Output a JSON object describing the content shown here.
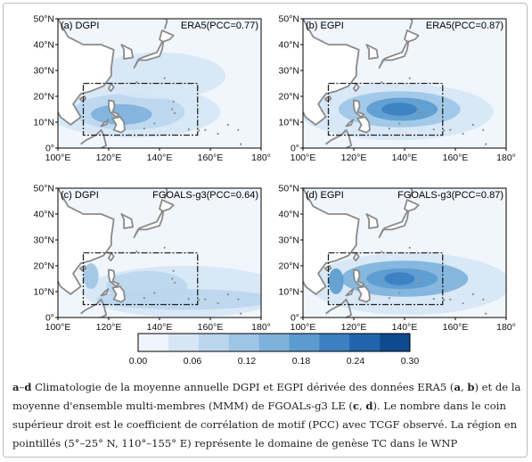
{
  "colors": {
    "land": "#ffffff",
    "coast": "#8a8a8a",
    "ocean_base": "#f1f6fc",
    "box": "#222222",
    "scale": [
      "#eef4fb",
      "#d7e6f5",
      "#bcd6ee",
      "#9ec5e6",
      "#7eb2dc",
      "#5c9bd0",
      "#3b80c0",
      "#2264ab",
      "#0d4a8e"
    ]
  },
  "panels": [
    {
      "label": "(a) DGPI",
      "dataset": "ERA5(PCC=0.77)"
    },
    {
      "label": "(b) EGPI",
      "dataset": "ERA5(PCC=0.87)"
    },
    {
      "label": "(c) DGPI",
      "dataset": "FGOALS-g3(PCC=0.64)"
    },
    {
      "label": "(d) EGPI",
      "dataset": "FGOALS-g3(PCC=0.87)"
    }
  ],
  "chart_data": {
    "type": "heatmap",
    "x_ticks": [
      "100°E",
      "120°E",
      "140°E",
      "160°E",
      "180°"
    ],
    "y_ticks": [
      "0°",
      "10°N",
      "20°N",
      "30°N",
      "40°N",
      "50°N"
    ],
    "xlim": [
      100,
      180
    ],
    "ylim": [
      0,
      50
    ],
    "genesis_region": {
      "lat": [
        5,
        25
      ],
      "lon": [
        110,
        155
      ]
    },
    "colorbar": {
      "ticks": [
        "0.00",
        "0.06",
        "0.12",
        "0.18",
        "0.24",
        "0.30"
      ],
      "levels": [
        0.0,
        0.0375,
        0.075,
        0.1125,
        0.15,
        0.1875,
        0.225,
        0.2625,
        0.3
      ]
    },
    "maps": [
      {
        "name": "(a) DGPI ERA5",
        "blobs": [
          {
            "lon": 130,
            "lat": 14,
            "rx": 34,
            "ry": 10,
            "v": 0.06
          },
          {
            "lon": 128,
            "lat": 14,
            "rx": 22,
            "ry": 7,
            "v": 0.11
          },
          {
            "lon": 125,
            "lat": 13,
            "rx": 12,
            "ry": 4,
            "v": 0.15
          },
          {
            "lon": 140,
            "lat": 28,
            "rx": 26,
            "ry": 9,
            "v": 0.04
          }
        ]
      },
      {
        "name": "(b) EGPI ERA5",
        "blobs": [
          {
            "lon": 137,
            "lat": 14,
            "rx": 38,
            "ry": 11,
            "v": 0.07
          },
          {
            "lon": 138,
            "lat": 15,
            "rx": 24,
            "ry": 7,
            "v": 0.14
          },
          {
            "lon": 139,
            "lat": 15,
            "rx": 14,
            "ry": 4.5,
            "v": 0.2
          },
          {
            "lon": 138,
            "lat": 15,
            "rx": 7,
            "ry": 2.5,
            "v": 0.25
          }
        ]
      },
      {
        "name": "(c) DGPI FGOALS-g3",
        "blobs": [
          {
            "lon": 150,
            "lat": 10,
            "rx": 40,
            "ry": 10,
            "v": 0.05
          },
          {
            "lon": 150,
            "lat": 7,
            "rx": 35,
            "ry": 4,
            "v": 0.11
          },
          {
            "lon": 135,
            "lat": 12,
            "rx": 16,
            "ry": 6,
            "v": 0.09
          },
          {
            "lon": 113,
            "lat": 16,
            "rx": 3,
            "ry": 5,
            "v": 0.14
          }
        ]
      },
      {
        "name": "(d) EGPI FGOALS-g3",
        "blobs": [
          {
            "lon": 142,
            "lat": 13,
            "rx": 40,
            "ry": 12,
            "v": 0.07
          },
          {
            "lon": 140,
            "lat": 15,
            "rx": 25,
            "ry": 7,
            "v": 0.15
          },
          {
            "lon": 139,
            "lat": 15,
            "rx": 14,
            "ry": 4,
            "v": 0.21
          },
          {
            "lon": 138,
            "lat": 15,
            "rx": 6,
            "ry": 2.5,
            "v": 0.26
          },
          {
            "lon": 113,
            "lat": 14,
            "rx": 3,
            "ry": 5,
            "v": 0.22
          }
        ]
      }
    ]
  },
  "caption": {
    "l1": "a",
    "l2": "–",
    "l3": "d",
    "t1": " Climatologie de la moyenne annuelle DGPI et EGPI dérivée des données ERA5 (",
    "a": "a",
    "sep1": ", ",
    "b": "b",
    "t2": ") et de la moyenne d'ensemble multi-membres (MMM) de FGOALs-g3 LE (",
    "c": "c",
    "sep2": ", ",
    "d": "d",
    "t3": "). Le nombre dans le coin supérieur droit est le coefficient de corrélation de motif (PCC) avec TCGF observé. La région en pointillés (5°–25° N, 110°–155° E) représente le domaine de genèse TC dans le WNP"
  }
}
